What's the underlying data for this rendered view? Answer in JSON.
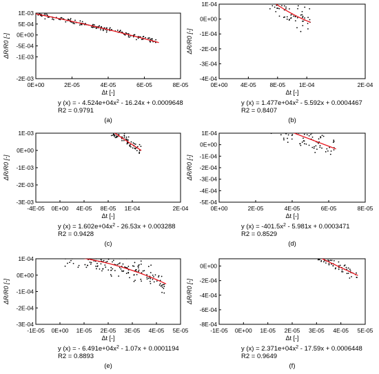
{
  "chart_data": [
    {
      "type": "scatter",
      "panel_label": "(a)",
      "xlabel": "Δt [-]",
      "ylabel": "ΔR/R0 [-]",
      "xlim": [
        0,
        8e-05
      ],
      "ylim": [
        -0.002,
        0.001
      ],
      "x_ticks": [
        "0E+00",
        "2E-05",
        "4E-05",
        "6E-05",
        "8E-05"
      ],
      "y_ticks": [
        "-2E-03",
        "-1E-03",
        "-5E-04",
        "0E+00",
        "5E-04",
        "1E-03"
      ],
      "x_tick_values": [
        0,
        2e-05,
        4e-05,
        6e-05,
        8e-05
      ],
      "y_tick_values": [
        -0.002,
        -0.001,
        -0.0005,
        0,
        0.0005,
        0.001
      ],
      "fit": {
        "a": -45240,
        "b": -16.24,
        "c": 0.0009648,
        "x_range": [
          0,
          6.8e-05
        ]
      },
      "scatter": {
        "x_range": [
          5e-07,
          6.7e-05
        ],
        "spread": 0.00012,
        "n": 150,
        "seed": 11
      },
      "equation": {
        "prefix": "y (x) = - 4.524e+04x",
        "sup": "2",
        "suffix": " - 16.24x + 0.0009648"
      },
      "r2": "R2 = 0.9791"
    },
    {
      "type": "scatter",
      "panel_label": "(b)",
      "xlabel": "Δt [-]",
      "ylabel": "ΔR/R0 [-]",
      "xlim": [
        0,
        0.0002
      ],
      "ylim": [
        -0.0004,
        0.0001
      ],
      "x_ticks": [
        "0E+00",
        "4E-05",
        "8E-05",
        "1E-04",
        "2E-04"
      ],
      "y_ticks": [
        "-4E-04",
        "-3E-04",
        "-2E-04",
        "-1E-04",
        "0E+00",
        "1E-04"
      ],
      "x_tick_values": [
        0,
        4e-05,
        8e-05,
        0.00012,
        0.0002
      ],
      "y_tick_values": [
        -0.0004,
        -0.0003,
        -0.0002,
        -0.0001,
        0,
        0.0001
      ],
      "fit": {
        "a": 14770,
        "b": -5.592,
        "c": 0.0004467,
        "x_range": [
          0,
          0.000125
        ]
      },
      "scatter": {
        "x_range": [
          1e-06,
          0.000125
        ],
        "spread": 9e-05,
        "n": 170,
        "seed": 23
      },
      "equation": {
        "prefix": "y (x) = 1.477e+04x",
        "sup": "2",
        "suffix": " - 5.592x + 0.0004467"
      },
      "r2": "R2 = 0.8407"
    },
    {
      "type": "scatter",
      "panel_label": "(c)",
      "xlabel": "Δt [-]",
      "ylabel": "ΔR/R0 [-]",
      "xlim": [
        -4e-05,
        0.0002
      ],
      "ylim": [
        -0.003,
        0.001
      ],
      "x_ticks": [
        "-4E-05",
        "0E+00",
        "4E-05",
        "8E-05",
        "1E-04",
        "2E-04"
      ],
      "y_ticks": [
        "-3E-03",
        "-2E-03",
        "-1E-03",
        "0E+00",
        "1E-03"
      ],
      "x_tick_values": [
        -4e-05,
        0,
        4e-05,
        8e-05,
        0.00012,
        0.0002
      ],
      "y_tick_values": [
        -0.003,
        -0.002,
        -0.001,
        0,
        0.001
      ],
      "fit": {
        "a": 16020,
        "b": -26.53,
        "c": 0.003288,
        "x_range": [
          0,
          0.000135
        ]
      },
      "scatter": {
        "x_range": [
          1e-06,
          0.000135
        ],
        "spread": 0.0003,
        "n": 190,
        "seed": 37
      },
      "equation": {
        "prefix": "y (x) = 1.602e+04x",
        "sup": "2",
        "suffix": " - 26.53x + 0.003288"
      },
      "r2": "R2 = 0.9428"
    },
    {
      "type": "scatter",
      "panel_label": "(d)",
      "xlabel": "Δt [-]",
      "ylabel": "ΔR/R0 [-]",
      "xlim": [
        0,
        8e-05
      ],
      "ylim": [
        -0.0005,
        0.0001
      ],
      "x_ticks": [
        "0E+00",
        "2E-05",
        "4E-05",
        "6E-05",
        "8E-05"
      ],
      "y_ticks": [
        "-5E-04",
        "-4E-04",
        "-3E-04",
        "-2E-04",
        "-1E-04",
        "0E+00",
        "1E-04"
      ],
      "x_tick_values": [
        0,
        2e-05,
        4e-05,
        6e-05,
        8e-05
      ],
      "y_tick_values": [
        -0.0005,
        -0.0004,
        -0.0003,
        -0.0002,
        -0.0001,
        0,
        0.0001
      ],
      "fit": {
        "a": -401.5,
        "b": -5.981,
        "c": 0.0003471,
        "x_range": [
          0,
          6.4e-05
        ]
      },
      "scatter": {
        "x_range": [
          5e-07,
          6.3e-05
        ],
        "spread": 0.00011,
        "n": 170,
        "seed": 53
      },
      "equation": {
        "prefix": "y (x) = -401.5x",
        "sup": "2",
        "suffix": " - 5.981x + 0.0003471"
      },
      "r2": "R2 = 0.8529"
    },
    {
      "type": "scatter",
      "panel_label": "(e)",
      "xlabel": "Δt [-]",
      "ylabel": "ΔR/R0 [-]",
      "xlim": [
        -1e-05,
        5e-05
      ],
      "ylim": [
        -0.0003,
        0.0001
      ],
      "x_ticks": [
        "-1E-05",
        "0E+00",
        "1E-05",
        "2E-05",
        "3E-05",
        "4E-05",
        "5E-05"
      ],
      "y_ticks": [
        "-3E-04",
        "-2E-04",
        "-1E-04",
        "0E+00",
        "1E-04"
      ],
      "x_tick_values": [
        -1e-05,
        0,
        1e-05,
        2e-05,
        3e-05,
        4e-05,
        5e-05
      ],
      "y_tick_values": [
        -0.0003,
        -0.0002,
        -0.0001,
        0,
        0.0001
      ],
      "fit": {
        "a": -64910,
        "b": -1.07,
        "c": 0.0001194,
        "x_range": [
          0,
          4.4e-05
        ]
      },
      "scatter": {
        "x_range": [
          2e-07,
          4.4e-05
        ],
        "spread": 7e-05,
        "n": 170,
        "seed": 71
      },
      "equation": {
        "prefix": "y (x) = - 6.491e+04x",
        "sup": "2",
        "suffix": " - 1.07x + 0.0001194"
      },
      "r2": "R2 = 0.8893"
    },
    {
      "type": "scatter",
      "panel_label": "(f)",
      "xlabel": "Δt [-]",
      "ylabel": "ΔR/R0 [-]",
      "xlim": [
        -1e-05,
        5e-05
      ],
      "ylim": [
        -0.0008,
        0.0001
      ],
      "x_ticks": [
        "-1E-05",
        "0E+00",
        "1E-05",
        "2E-05",
        "3E-05",
        "4E-05",
        "5E-05"
      ],
      "y_ticks": [
        "-8E-04",
        "-6E-04",
        "-4E-04",
        "-2E-04",
        "0E+00"
      ],
      "x_tick_values": [
        -1e-05,
        0,
        1e-05,
        2e-05,
        3e-05,
        4e-05,
        5e-05
      ],
      "y_tick_values": [
        -0.0008,
        -0.0006,
        -0.0004,
        -0.0002,
        0
      ],
      "fit": {
        "a": 23710,
        "b": -17.59,
        "c": 0.0006448,
        "x_range": [
          0,
          4.7e-05
        ]
      },
      "scatter": {
        "x_range": [
          3e-07,
          4.7e-05
        ],
        "spread": 8e-05,
        "n": 180,
        "seed": 89
      },
      "equation": {
        "prefix": "y (x) = 2.371e+04x",
        "sup": "2",
        "suffix": " - 17.59x + 0.0006448"
      },
      "r2": "R2 = 0.9649"
    }
  ],
  "style": {
    "fit_color": "#e8141c",
    "point_color": "#000000",
    "axis_color": "#000000"
  }
}
